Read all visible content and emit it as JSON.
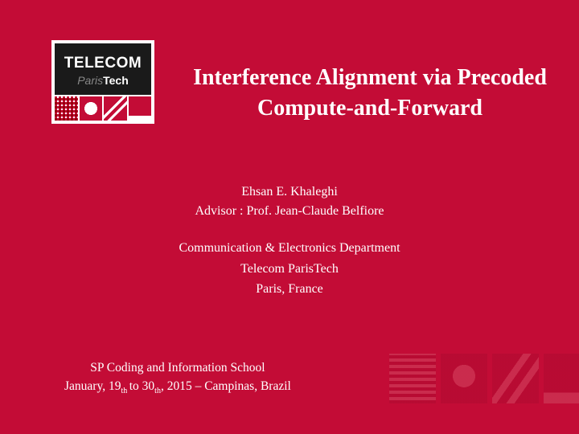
{
  "background_color": "#c30c36",
  "text_color": "#ffffff",
  "logo": {
    "line1": "TELECOM",
    "line2_gray": "Paris",
    "line2_bold": "Tech",
    "border_color": "#ffffff",
    "top_bg": "#1a1a1a",
    "pattern_fg": "#c30c36",
    "pattern_bg": "#ffffff"
  },
  "title": {
    "line1": "Interference Alignment via Precoded",
    "line2": "Compute-and-Forward",
    "fontsize": 28,
    "weight": "bold"
  },
  "author": {
    "name": "Ehsan E. Khaleghi",
    "advisor_line": "Advisor : Prof. Jean-Claude Belfiore",
    "fontsize": 16
  },
  "affiliation": {
    "line1": "Communication & Electronics Department",
    "line2": "Telecom ParisTech",
    "line3": "Paris, France",
    "fontsize": 16
  },
  "footer": {
    "line1": "SP Coding and Information School",
    "line2_a": "January, 19",
    "line2_ord1": "th ",
    "line2_b": "to 30",
    "line2_ord2": "th",
    "line2_c": ", 2015 – Campinas, Brazil",
    "fontsize": 15.5
  },
  "decor": {
    "block_color_light": "#d04560",
    "block_color_dark": "#b00a30",
    "opacity": 0.55
  }
}
